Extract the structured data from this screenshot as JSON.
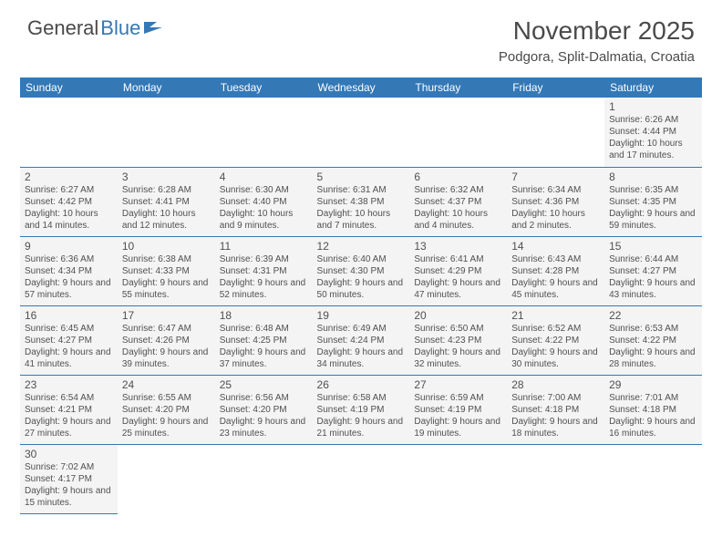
{
  "logo": {
    "general": "General",
    "blue": "Blue"
  },
  "title": "November 2025",
  "location": "Podgora, Split-Dalmatia, Croatia",
  "colors": {
    "header_bg": "#3478b6",
    "header_text": "#ffffff",
    "cell_bg": "#f4f4f4",
    "text": "#505050",
    "border": "#3478b6"
  },
  "weekdays": [
    "Sunday",
    "Monday",
    "Tuesday",
    "Wednesday",
    "Thursday",
    "Friday",
    "Saturday"
  ],
  "weeks": [
    [
      null,
      null,
      null,
      null,
      null,
      null,
      {
        "n": "1",
        "sr": "6:26 AM",
        "ss": "4:44 PM",
        "dl": "10 hours and 17 minutes."
      }
    ],
    [
      {
        "n": "2",
        "sr": "6:27 AM",
        "ss": "4:42 PM",
        "dl": "10 hours and 14 minutes."
      },
      {
        "n": "3",
        "sr": "6:28 AM",
        "ss": "4:41 PM",
        "dl": "10 hours and 12 minutes."
      },
      {
        "n": "4",
        "sr": "6:30 AM",
        "ss": "4:40 PM",
        "dl": "10 hours and 9 minutes."
      },
      {
        "n": "5",
        "sr": "6:31 AM",
        "ss": "4:38 PM",
        "dl": "10 hours and 7 minutes."
      },
      {
        "n": "6",
        "sr": "6:32 AM",
        "ss": "4:37 PM",
        "dl": "10 hours and 4 minutes."
      },
      {
        "n": "7",
        "sr": "6:34 AM",
        "ss": "4:36 PM",
        "dl": "10 hours and 2 minutes."
      },
      {
        "n": "8",
        "sr": "6:35 AM",
        "ss": "4:35 PM",
        "dl": "9 hours and 59 minutes."
      }
    ],
    [
      {
        "n": "9",
        "sr": "6:36 AM",
        "ss": "4:34 PM",
        "dl": "9 hours and 57 minutes."
      },
      {
        "n": "10",
        "sr": "6:38 AM",
        "ss": "4:33 PM",
        "dl": "9 hours and 55 minutes."
      },
      {
        "n": "11",
        "sr": "6:39 AM",
        "ss": "4:31 PM",
        "dl": "9 hours and 52 minutes."
      },
      {
        "n": "12",
        "sr": "6:40 AM",
        "ss": "4:30 PM",
        "dl": "9 hours and 50 minutes."
      },
      {
        "n": "13",
        "sr": "6:41 AM",
        "ss": "4:29 PM",
        "dl": "9 hours and 47 minutes."
      },
      {
        "n": "14",
        "sr": "6:43 AM",
        "ss": "4:28 PM",
        "dl": "9 hours and 45 minutes."
      },
      {
        "n": "15",
        "sr": "6:44 AM",
        "ss": "4:27 PM",
        "dl": "9 hours and 43 minutes."
      }
    ],
    [
      {
        "n": "16",
        "sr": "6:45 AM",
        "ss": "4:27 PM",
        "dl": "9 hours and 41 minutes."
      },
      {
        "n": "17",
        "sr": "6:47 AM",
        "ss": "4:26 PM",
        "dl": "9 hours and 39 minutes."
      },
      {
        "n": "18",
        "sr": "6:48 AM",
        "ss": "4:25 PM",
        "dl": "9 hours and 37 minutes."
      },
      {
        "n": "19",
        "sr": "6:49 AM",
        "ss": "4:24 PM",
        "dl": "9 hours and 34 minutes."
      },
      {
        "n": "20",
        "sr": "6:50 AM",
        "ss": "4:23 PM",
        "dl": "9 hours and 32 minutes."
      },
      {
        "n": "21",
        "sr": "6:52 AM",
        "ss": "4:22 PM",
        "dl": "9 hours and 30 minutes."
      },
      {
        "n": "22",
        "sr": "6:53 AM",
        "ss": "4:22 PM",
        "dl": "9 hours and 28 minutes."
      }
    ],
    [
      {
        "n": "23",
        "sr": "6:54 AM",
        "ss": "4:21 PM",
        "dl": "9 hours and 27 minutes."
      },
      {
        "n": "24",
        "sr": "6:55 AM",
        "ss": "4:20 PM",
        "dl": "9 hours and 25 minutes."
      },
      {
        "n": "25",
        "sr": "6:56 AM",
        "ss": "4:20 PM",
        "dl": "9 hours and 23 minutes."
      },
      {
        "n": "26",
        "sr": "6:58 AM",
        "ss": "4:19 PM",
        "dl": "9 hours and 21 minutes."
      },
      {
        "n": "27",
        "sr": "6:59 AM",
        "ss": "4:19 PM",
        "dl": "9 hours and 19 minutes."
      },
      {
        "n": "28",
        "sr": "7:00 AM",
        "ss": "4:18 PM",
        "dl": "9 hours and 18 minutes."
      },
      {
        "n": "29",
        "sr": "7:01 AM",
        "ss": "4:18 PM",
        "dl": "9 hours and 16 minutes."
      }
    ],
    [
      {
        "n": "30",
        "sr": "7:02 AM",
        "ss": "4:17 PM",
        "dl": "9 hours and 15 minutes."
      },
      null,
      null,
      null,
      null,
      null,
      null
    ]
  ],
  "labels": {
    "sunrise": "Sunrise:",
    "sunset": "Sunset:",
    "daylight": "Daylight:"
  }
}
